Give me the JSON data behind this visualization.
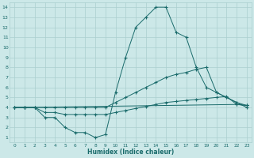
{
  "xlabel": "Humidex (Indice chaleur)",
  "bg_color": "#cce8e8",
  "grid_color": "#aacfcf",
  "line_color": "#1a6b6b",
  "xlim": [
    -0.5,
    23.5
  ],
  "ylim": [
    0.5,
    14.5
  ],
  "xticks": [
    0,
    1,
    2,
    3,
    4,
    5,
    6,
    7,
    8,
    9,
    10,
    11,
    12,
    13,
    14,
    15,
    16,
    17,
    18,
    19,
    20,
    21,
    22,
    23
  ],
  "yticks": [
    1,
    2,
    3,
    4,
    5,
    6,
    7,
    8,
    9,
    10,
    11,
    12,
    13,
    14
  ],
  "line1_x": [
    0,
    1,
    2,
    3,
    4,
    5,
    6,
    7,
    8,
    9,
    10,
    11,
    12,
    13,
    14,
    15,
    16,
    17,
    18,
    19,
    20,
    21,
    22,
    23
  ],
  "line1_y": [
    4.0,
    4.0,
    4.0,
    3.0,
    3.0,
    2.0,
    1.5,
    1.5,
    1.0,
    1.3,
    5.5,
    9.0,
    12.0,
    13.0,
    14.0,
    14.0,
    11.5,
    11.0,
    8.0,
    6.0,
    5.5,
    5.0,
    4.5,
    4.0
  ],
  "line2_x": [
    0,
    1,
    2,
    3,
    4,
    5,
    6,
    7,
    8,
    9,
    10,
    11,
    12,
    13,
    14,
    15,
    16,
    17,
    18,
    19,
    20,
    21,
    22,
    23
  ],
  "line2_y": [
    4.0,
    4.0,
    4.0,
    4.0,
    4.0,
    4.0,
    4.0,
    4.0,
    4.0,
    4.0,
    4.5,
    5.0,
    5.5,
    6.0,
    6.5,
    7.0,
    7.3,
    7.5,
    7.8,
    8.0,
    5.5,
    5.0,
    4.5,
    4.2
  ],
  "line3_x": [
    0,
    1,
    2,
    3,
    4,
    5,
    6,
    7,
    8,
    9,
    10,
    11,
    12,
    13,
    14,
    15,
    16,
    17,
    18,
    19,
    20,
    21,
    22,
    23
  ],
  "line3_y": [
    4.0,
    4.0,
    4.0,
    3.5,
    3.5,
    3.3,
    3.3,
    3.3,
    3.3,
    3.3,
    3.5,
    3.7,
    3.9,
    4.1,
    4.3,
    4.5,
    4.6,
    4.7,
    4.8,
    4.9,
    5.0,
    5.1,
    4.3,
    4.2
  ],
  "line4_x": [
    0,
    1,
    22,
    23
  ],
  "line4_y": [
    4.0,
    4.0,
    4.3,
    4.2
  ]
}
